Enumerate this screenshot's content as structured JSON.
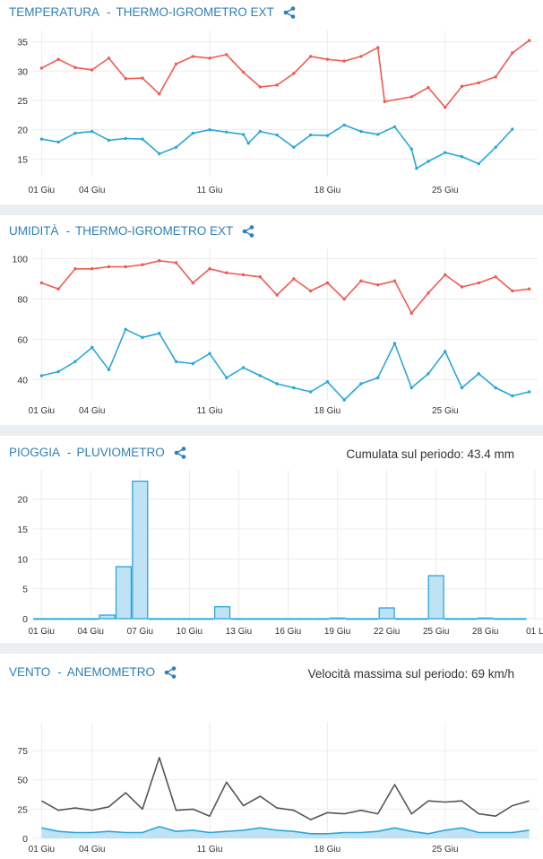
{
  "colors": {
    "red": "#ef5b50",
    "blue": "#2aa6d9",
    "gray": "#555555",
    "accent": "#2f7fb6",
    "fill": "#bfe3f5",
    "grid": "#ececec"
  },
  "panels": [
    {
      "type_label": "TEMPERATURA",
      "sep": " - ",
      "sensor": "THERMO-IGROMETRO EXT",
      "note": ""
    },
    {
      "type_label": "UMIDITÀ",
      "sep": " - ",
      "sensor": "THERMO-IGROMETRO EXT",
      "note": ""
    },
    {
      "type_label": "PIOGGIA",
      "sep": " - ",
      "sensor": "PLUVIOMETRO",
      "note": "Cumulata sul periodo: 43.4 mm"
    },
    {
      "type_label": "VENTO",
      "sep": " - ",
      "sensor": "ANEMOMETRO",
      "note": "Velocità massima sul periodo: 69 km/h"
    }
  ],
  "chart_data": [
    {
      "type": "line",
      "x": [
        1,
        2,
        3,
        4,
        5,
        6,
        7,
        8,
        9,
        10,
        11,
        12,
        13,
        14,
        15,
        16,
        17,
        18,
        19,
        20,
        21,
        22,
        23,
        24,
        25,
        26,
        27,
        28,
        29,
        30
      ],
      "xticks": [
        {
          "day": 1,
          "label": "01 Giu"
        },
        {
          "day": 4,
          "label": "04 Giu"
        },
        {
          "day": 11,
          "label": "11 Giu"
        },
        {
          "day": 18,
          "label": "18 Giu"
        },
        {
          "day": 25,
          "label": "25 Giu"
        }
      ],
      "ylim": [
        12,
        36
      ],
      "yticks": [
        15,
        20,
        25,
        30,
        35
      ],
      "series": [
        {
          "color": "red",
          "points": [
            [
              1,
              30.5
            ],
            [
              2,
              32
            ],
            [
              3,
              30.6
            ],
            [
              4,
              30.2
            ],
            [
              5,
              32.2
            ],
            [
              6,
              28.7
            ],
            [
              7,
              28.8
            ],
            [
              8,
              26.1
            ],
            [
              9,
              31.2
            ],
            [
              10,
              32.5
            ],
            [
              11,
              32.2
            ],
            [
              12,
              32.8
            ],
            [
              13,
              29.8
            ],
            [
              14,
              27.3
            ],
            [
              15,
              27.6
            ],
            [
              16,
              29.6
            ],
            [
              17,
              32.5
            ],
            [
              18,
              32
            ],
            [
              19,
              31.7
            ],
            [
              20,
              32.5
            ],
            [
              21,
              34
            ],
            [
              21.4,
              24.8
            ],
            [
              23,
              25.6
            ],
            [
              24,
              27.2
            ],
            [
              25,
              23.8
            ],
            [
              26,
              27.4
            ],
            [
              27,
              28
            ],
            [
              28,
              29
            ],
            [
              29,
              33.1
            ],
            [
              30,
              35.2
            ]
          ]
        },
        {
          "color": "blue",
          "points": [
            [
              1,
              18.4
            ],
            [
              2,
              17.9
            ],
            [
              3,
              19.4
            ],
            [
              4,
              19.7
            ],
            [
              5,
              18.2
            ],
            [
              6,
              18.5
            ],
            [
              7,
              18.4
            ],
            [
              8,
              15.9
            ],
            [
              9,
              17
            ],
            [
              10,
              19.4
            ],
            [
              11,
              20
            ],
            [
              12,
              19.6
            ],
            [
              13,
              19.2
            ],
            [
              13.3,
              17.7
            ],
            [
              14,
              19.7
            ],
            [
              15,
              19.1
            ],
            [
              16,
              17
            ],
            [
              17,
              19.1
            ],
            [
              18,
              19
            ],
            [
              19,
              20.8
            ],
            [
              20,
              19.7
            ],
            [
              21,
              19.2
            ],
            [
              22,
              20.5
            ],
            [
              23,
              16.7
            ],
            [
              23.3,
              13.4
            ],
            [
              24,
              14.6
            ],
            [
              25,
              16.1
            ],
            [
              26,
              15.4
            ],
            [
              27,
              14.2
            ],
            [
              28,
              17
            ],
            [
              29,
              20.1
            ]
          ]
        }
      ]
    },
    {
      "type": "line",
      "x": [
        1,
        2,
        3,
        4,
        5,
        6,
        7,
        8,
        9,
        10,
        11,
        12,
        13,
        14,
        15,
        16,
        17,
        18,
        19,
        20,
        21,
        22,
        23,
        24,
        25,
        26,
        27,
        28,
        29,
        30
      ],
      "xticks": [
        {
          "day": 1,
          "label": "01 Giu"
        },
        {
          "day": 4,
          "label": "04 Giu"
        },
        {
          "day": 11,
          "label": "11 Giu"
        },
        {
          "day": 18,
          "label": "18 Giu"
        },
        {
          "day": 25,
          "label": "25 Giu"
        }
      ],
      "ylim": [
        30,
        102
      ],
      "yticks": [
        40,
        60,
        80,
        100
      ],
      "series": [
        {
          "color": "red",
          "points": [
            [
              1,
              88
            ],
            [
              2,
              85
            ],
            [
              3,
              95
            ],
            [
              4,
              95
            ],
            [
              5,
              96
            ],
            [
              6,
              96
            ],
            [
              7,
              97
            ],
            [
              8,
              99
            ],
            [
              9,
              98
            ],
            [
              10,
              88
            ],
            [
              11,
              95
            ],
            [
              12,
              93
            ],
            [
              13,
              92
            ],
            [
              14,
              91
            ],
            [
              15,
              82
            ],
            [
              16,
              90
            ],
            [
              17,
              84
            ],
            [
              18,
              88
            ],
            [
              19,
              80
            ],
            [
              20,
              89
            ],
            [
              21,
              87
            ],
            [
              22,
              89
            ],
            [
              23,
              73
            ],
            [
              24,
              83
            ],
            [
              25,
              92
            ],
            [
              26,
              86
            ],
            [
              27,
              88
            ],
            [
              28,
              91
            ],
            [
              29,
              84
            ],
            [
              30,
              85
            ]
          ]
        },
        {
          "color": "blue",
          "points": [
            [
              1,
              42
            ],
            [
              2,
              44
            ],
            [
              3,
              49
            ],
            [
              4,
              56
            ],
            [
              5,
              45
            ],
            [
              6,
              65
            ],
            [
              7,
              61
            ],
            [
              8,
              63
            ],
            [
              9,
              49
            ],
            [
              10,
              48
            ],
            [
              11,
              53
            ],
            [
              12,
              41
            ],
            [
              13,
              46
            ],
            [
              14,
              42
            ],
            [
              15,
              38
            ],
            [
              16,
              36
            ],
            [
              17,
              34
            ],
            [
              18,
              39
            ],
            [
              19,
              30
            ],
            [
              20,
              38
            ],
            [
              21,
              41
            ],
            [
              22,
              58
            ],
            [
              23,
              36
            ],
            [
              24,
              43
            ],
            [
              25,
              54
            ],
            [
              26,
              36
            ],
            [
              27,
              43
            ],
            [
              28,
              36
            ],
            [
              29,
              32
            ],
            [
              30,
              34
            ]
          ]
        }
      ]
    },
    {
      "type": "bar",
      "categories": [
        "01",
        "02",
        "03",
        "04",
        "05",
        "06",
        "07",
        "08",
        "09",
        "10",
        "11",
        "12",
        "13",
        "14",
        "15",
        "16",
        "17",
        "18",
        "19",
        "20",
        "21",
        "22",
        "23",
        "24",
        "25",
        "26",
        "27",
        "28",
        "29",
        "30"
      ],
      "values": [
        0,
        0,
        0,
        0,
        0.6,
        8.7,
        23,
        0,
        0,
        0,
        0,
        2,
        0,
        0,
        0,
        0,
        0,
        0,
        0.1,
        0,
        0,
        1.8,
        0,
        0,
        7.2,
        0,
        0,
        0.1,
        0,
        0
      ],
      "xticks": [
        {
          "day": 1,
          "label": "01 Giu"
        },
        {
          "day": 4,
          "label": "04 Giu"
        },
        {
          "day": 7,
          "label": "07 Giu"
        },
        {
          "day": 10,
          "label": "10 Giu"
        },
        {
          "day": 13,
          "label": "13 Giu"
        },
        {
          "day": 16,
          "label": "16 Giu"
        },
        {
          "day": 19,
          "label": "19 Giu"
        },
        {
          "day": 22,
          "label": "22 Giu"
        },
        {
          "day": 25,
          "label": "25 Giu"
        },
        {
          "day": 28,
          "label": "28 Giu"
        },
        {
          "day": 31,
          "label": "01 L"
        }
      ],
      "ylim": [
        0,
        24
      ],
      "yticks": [
        0,
        5,
        10,
        15,
        20
      ]
    },
    {
      "type": "area",
      "x": [
        1,
        2,
        3,
        4,
        5,
        6,
        7,
        8,
        9,
        10,
        11,
        12,
        13,
        14,
        15,
        16,
        17,
        18,
        19,
        20,
        21,
        22,
        23,
        24,
        25,
        26,
        27,
        28,
        29,
        30
      ],
      "xticks": [
        {
          "day": 1,
          "label": "01 Giu"
        },
        {
          "day": 4,
          "label": "04 Giu"
        },
        {
          "day": 11,
          "label": "11 Giu"
        },
        {
          "day": 18,
          "label": "18 Giu"
        },
        {
          "day": 25,
          "label": "25 Giu"
        }
      ],
      "ylim": [
        0,
        95
      ],
      "yticks": [
        0,
        25,
        50,
        75
      ],
      "series": [
        {
          "color": "gray",
          "points": [
            [
              1,
              32
            ],
            [
              2,
              24
            ],
            [
              3,
              26
            ],
            [
              4,
              24
            ],
            [
              5,
              27
            ],
            [
              6,
              39
            ],
            [
              7,
              25
            ],
            [
              8,
              69
            ],
            [
              9,
              24
            ],
            [
              10,
              25
            ],
            [
              11,
              19
            ],
            [
              12,
              48
            ],
            [
              13,
              28
            ],
            [
              14,
              36
            ],
            [
              15,
              26
            ],
            [
              16,
              24
            ],
            [
              17,
              16
            ],
            [
              18,
              22
            ],
            [
              19,
              21
            ],
            [
              20,
              24
            ],
            [
              21,
              21
            ],
            [
              22,
              46
            ],
            [
              23,
              21
            ],
            [
              24,
              32
            ],
            [
              25,
              31
            ],
            [
              26,
              32
            ],
            [
              27,
              21
            ],
            [
              28,
              19
            ],
            [
              29,
              28
            ],
            [
              30,
              32
            ]
          ]
        },
        {
          "color": "blue",
          "filled": true,
          "points": [
            [
              1,
              9
            ],
            [
              2,
              6
            ],
            [
              3,
              5
            ],
            [
              4,
              5
            ],
            [
              5,
              6
            ],
            [
              6,
              5
            ],
            [
              7,
              5
            ],
            [
              8,
              10
            ],
            [
              9,
              6
            ],
            [
              10,
              7
            ],
            [
              11,
              5
            ],
            [
              12,
              6
            ],
            [
              13,
              7
            ],
            [
              14,
              9
            ],
            [
              15,
              7
            ],
            [
              16,
              6
            ],
            [
              17,
              4
            ],
            [
              18,
              4
            ],
            [
              19,
              5
            ],
            [
              20,
              5
            ],
            [
              21,
              6
            ],
            [
              22,
              9
            ],
            [
              23,
              6
            ],
            [
              24,
              4
            ],
            [
              25,
              7
            ],
            [
              26,
              9
            ],
            [
              27,
              5
            ],
            [
              28,
              5
            ],
            [
              29,
              5
            ],
            [
              30,
              7
            ]
          ]
        }
      ]
    }
  ]
}
